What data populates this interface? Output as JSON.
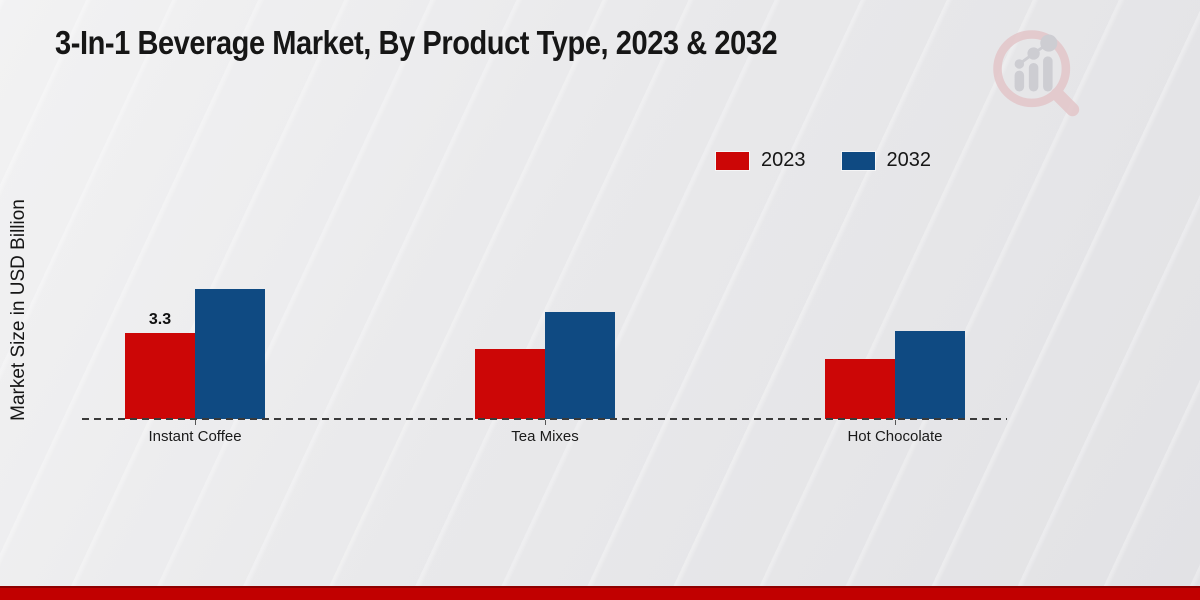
{
  "page": {
    "title": "3-In-1 Beverage Market, By Product Type, 2023 & 2032",
    "icons": {
      "logo": "magnifier-bar-chart"
    }
  },
  "colors": {
    "series_2023": "#cc0606",
    "series_2032": "#0f4a82",
    "footer_bar": "#c10000",
    "axis": "#3a3a3a",
    "logo_ring": "#e3c6c9",
    "logo_bars": "#c9c9cf"
  },
  "chart_data": {
    "type": "bar",
    "title": "3-In-1 Beverage Market, By Product Type, 2023 & 2032",
    "ylabel": "Market Size in USD Billion",
    "xlabel": "",
    "unit": "USD Billion",
    "categories": [
      "Instant Coffee",
      "Tea Mixes",
      "Hot Chocolate"
    ],
    "series": [
      {
        "name": "2023",
        "color": "#cc0606",
        "values": [
          3.3,
          2.7,
          2.3
        ]
      },
      {
        "name": "2032",
        "color": "#0f4a82",
        "values": [
          5.0,
          4.1,
          3.4
        ]
      }
    ],
    "data_labels": [
      {
        "category": "Instant Coffee",
        "series": "2023",
        "text": "3.3"
      }
    ],
    "legend_position": "top-right",
    "axis_style": {
      "baseline": "dashed",
      "gridlines": false,
      "y_ticks_shown": false,
      "ylim": [
        0,
        5.5
      ]
    }
  }
}
